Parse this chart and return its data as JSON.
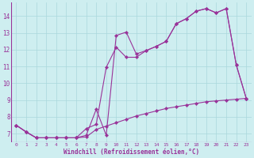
{
  "bg_color": "#ceeef0",
  "grid_color": "#aad8dc",
  "line_color": "#993399",
  "xlabel": "Windchill (Refroidissement éolien,°C)",
  "xlim": [
    -0.5,
    23.5
  ],
  "ylim": [
    6.5,
    14.8
  ],
  "yticks": [
    7,
    8,
    9,
    10,
    11,
    12,
    13,
    14
  ],
  "xticks": [
    0,
    1,
    2,
    3,
    4,
    5,
    6,
    7,
    8,
    9,
    10,
    11,
    12,
    13,
    14,
    15,
    16,
    17,
    18,
    19,
    20,
    21,
    22,
    23
  ],
  "line1_x": [
    0,
    1,
    2,
    3,
    4,
    5,
    6,
    7,
    8,
    9,
    10,
    11,
    12,
    13,
    14,
    15,
    16,
    17,
    18,
    19,
    20,
    21,
    22,
    23
  ],
  "line1_y": [
    7.5,
    7.1,
    6.75,
    6.75,
    6.75,
    6.75,
    6.75,
    6.9,
    8.45,
    6.9,
    12.85,
    13.05,
    11.75,
    11.95,
    12.2,
    12.5,
    13.55,
    13.85,
    14.3,
    14.45,
    14.2,
    14.45,
    11.1,
    9.1
  ],
  "line2_x": [
    0,
    1,
    2,
    3,
    4,
    5,
    6,
    7,
    8,
    9,
    10,
    11,
    12,
    13,
    14,
    15,
    16,
    17,
    18,
    19,
    20,
    21,
    22,
    23
  ],
  "line2_y": [
    7.5,
    7.1,
    6.75,
    6.75,
    6.75,
    6.75,
    6.75,
    7.3,
    7.55,
    10.95,
    12.15,
    11.55,
    11.55,
    11.95,
    12.2,
    12.5,
    13.55,
    13.85,
    14.3,
    14.45,
    14.2,
    14.45,
    11.1,
    9.1
  ],
  "line3_x": [
    0,
    1,
    2,
    3,
    4,
    5,
    6,
    7,
    8,
    9,
    10,
    11,
    12,
    13,
    14,
    15,
    16,
    17,
    18,
    19,
    20,
    21,
    22,
    23
  ],
  "line3_y": [
    7.5,
    7.1,
    6.75,
    6.75,
    6.75,
    6.75,
    6.75,
    6.8,
    7.25,
    7.45,
    7.65,
    7.85,
    8.05,
    8.2,
    8.35,
    8.5,
    8.6,
    8.7,
    8.8,
    8.9,
    8.95,
    9.0,
    9.05,
    9.1
  ]
}
